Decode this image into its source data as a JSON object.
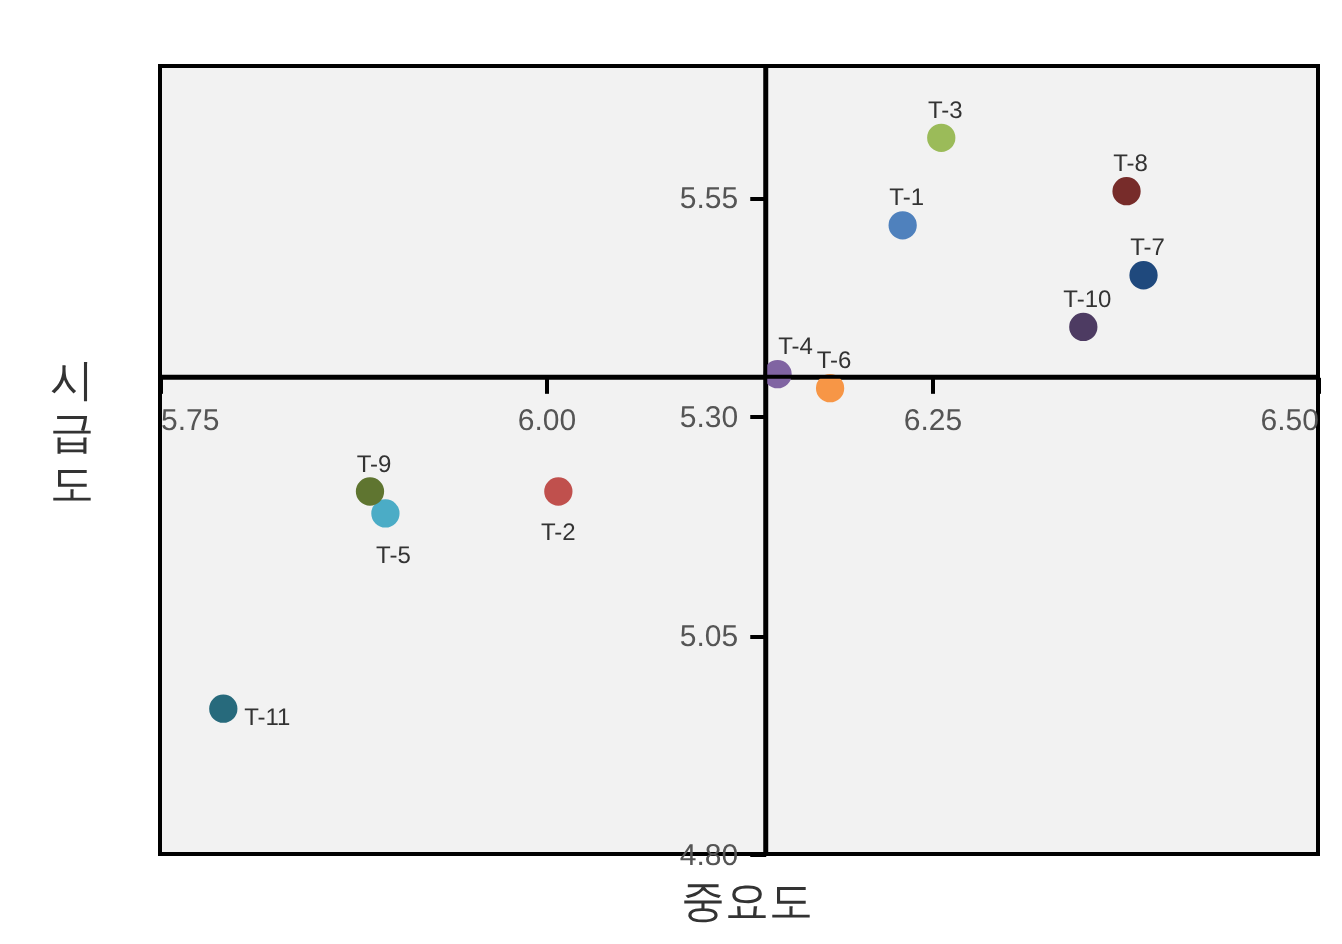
{
  "chart_data": {
    "type": "scatter",
    "xlabel": "중요도",
    "ylabel": "시급도",
    "xlim": [
      5.75,
      6.5
    ],
    "ylim": [
      4.8,
      5.7
    ],
    "xticks": [
      5.75,
      {
        "value": 6.0,
        "label": "6.00"
      },
      6.25,
      {
        "value": 6.5,
        "label": "6.50"
      }
    ],
    "yticks": [
      {
        "value": 4.8,
        "label": "4.80"
      },
      5.05,
      {
        "value": 5.3,
        "label": "5.30"
      },
      5.55
    ],
    "ref_lines": [
      {
        "axis": "x",
        "value": 6.142
      },
      {
        "axis": "y",
        "value": 5.345
      }
    ],
    "grid": false,
    "legend": false,
    "marker": "circle",
    "series": [
      {
        "name": "T-1",
        "color": "#4f81bd",
        "x": [
          6.231
        ],
        "values": [
          5.518
        ]
      },
      {
        "name": "T-2",
        "color": "#c0504d",
        "x": [
          6.008
        ],
        "values": [
          5.214
        ]
      },
      {
        "name": "T-3",
        "color": "#9bbb59",
        "x": [
          6.256
        ],
        "values": [
          5.618
        ]
      },
      {
        "name": "T-4",
        "color": "#8064a2",
        "x": [
          6.15
        ],
        "values": [
          5.348
        ]
      },
      {
        "name": "T-5",
        "color": "#4bacc6",
        "x": [
          5.896
        ],
        "values": [
          5.189
        ]
      },
      {
        "name": "T-6",
        "color": "#f79646",
        "x": [
          6.184
        ],
        "values": [
          5.332
        ]
      },
      {
        "name": "T-7",
        "color": "#1f497d",
        "x": [
          6.387
        ],
        "values": [
          5.461
        ]
      },
      {
        "name": "T-8",
        "color": "#772c2a",
        "x": [
          6.376
        ],
        "values": [
          5.557
        ]
      },
      {
        "name": "T-9",
        "color": "#5f7530",
        "x": [
          5.886
        ],
        "values": [
          5.214
        ]
      },
      {
        "name": "T-10",
        "color": "#4d3b62",
        "x": [
          6.348
        ],
        "values": [
          5.402
        ]
      },
      {
        "name": "T-11",
        "color": "#276a7c",
        "x": [
          5.791
        ],
        "values": [
          4.966
        ]
      }
    ]
  }
}
